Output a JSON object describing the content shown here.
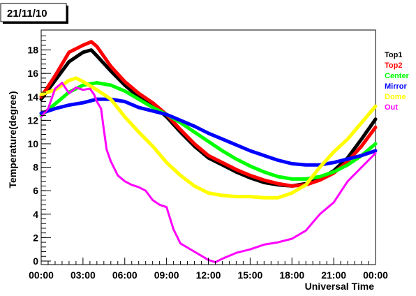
{
  "chart_data": {
    "type": "line",
    "title": "21/11/10",
    "xlabel": "Universal Time",
    "ylabel": "Temperature(degree)",
    "xlim": [
      0,
      24
    ],
    "ylim": [
      -0.3,
      19.7
    ],
    "x_ticks": [
      {
        "value": 0,
        "label": "00:00"
      },
      {
        "value": 3,
        "label": "03:00"
      },
      {
        "value": 6,
        "label": "06:00"
      },
      {
        "value": 9,
        "label": "09:00"
      },
      {
        "value": 12,
        "label": "12:00"
      },
      {
        "value": 15,
        "label": "15:00"
      },
      {
        "value": 18,
        "label": "18:00"
      },
      {
        "value": 21,
        "label": "21:00"
      },
      {
        "value": 24,
        "label": "00:00"
      }
    ],
    "y_ticks": [
      0,
      2,
      4,
      6,
      8,
      10,
      12,
      14,
      16,
      18
    ],
    "grid": false,
    "legend_position": "right",
    "series": [
      {
        "name": "Top1",
        "color": "#000000",
        "x": [
          0,
          1,
          2,
          3,
          3.6,
          4,
          5,
          6,
          7,
          8,
          9,
          10,
          11,
          12,
          13,
          14,
          15,
          16,
          17,
          18,
          19,
          20,
          21,
          22,
          23,
          24
        ],
        "y": [
          13.8,
          15.4,
          17.0,
          17.8,
          18.0,
          17.5,
          16.2,
          15.0,
          14.0,
          13.3,
          12.3,
          11.0,
          9.8,
          8.8,
          8.2,
          7.6,
          7.1,
          6.7,
          6.5,
          6.4,
          6.6,
          7.0,
          7.7,
          8.8,
          10.4,
          12.1
        ]
      },
      {
        "name": "Top2",
        "color": "#ff0000",
        "x": [
          0,
          1,
          2,
          3,
          3.6,
          4,
          5,
          6,
          7,
          8,
          9,
          10,
          11,
          12,
          13,
          14,
          15,
          16,
          17,
          18,
          19,
          20,
          21,
          22,
          23,
          24
        ],
        "y": [
          14.0,
          15.8,
          17.8,
          18.4,
          18.7,
          18.3,
          16.6,
          15.3,
          14.3,
          13.5,
          12.5,
          11.2,
          10.0,
          9.0,
          8.4,
          7.8,
          7.3,
          6.9,
          6.6,
          6.4,
          6.5,
          6.9,
          7.5,
          8.5,
          9.8,
          11.4
        ]
      },
      {
        "name": "Center",
        "color": "#00ff00",
        "x": [
          0,
          1,
          2,
          3,
          4,
          5,
          6,
          7,
          8,
          9,
          10,
          11,
          12,
          13,
          14,
          15,
          16,
          17,
          18,
          19,
          20,
          21,
          22,
          23,
          24
        ],
        "y": [
          12.4,
          13.4,
          14.4,
          15.0,
          15.2,
          15.0,
          14.5,
          13.8,
          13.1,
          12.5,
          11.8,
          11.0,
          10.2,
          9.4,
          8.7,
          8.1,
          7.6,
          7.2,
          7.0,
          7.0,
          7.2,
          7.6,
          8.2,
          9.0,
          10.0
        ]
      },
      {
        "name": "Mirror",
        "color": "#0000ff",
        "x": [
          0,
          1,
          2,
          3,
          4,
          5,
          6,
          7,
          8,
          9,
          10,
          11,
          12,
          13,
          14,
          15,
          16,
          17,
          18,
          19,
          20,
          21,
          22,
          23,
          24
        ],
        "y": [
          12.6,
          13.0,
          13.3,
          13.5,
          13.8,
          13.8,
          13.6,
          13.1,
          12.8,
          12.5,
          12.0,
          11.5,
          10.9,
          10.4,
          9.9,
          9.4,
          9.0,
          8.6,
          8.3,
          8.2,
          8.2,
          8.4,
          8.7,
          9.0,
          9.4
        ]
      },
      {
        "name": "Dome",
        "color": "#ffff00",
        "x": [
          0,
          1,
          2,
          2.5,
          3,
          4,
          5,
          6,
          7,
          8,
          9,
          10,
          11,
          12,
          13,
          14,
          15,
          16,
          17,
          18,
          19,
          20,
          21,
          22,
          23,
          24
        ],
        "y": [
          14.2,
          14.6,
          15.4,
          15.6,
          15.3,
          14.6,
          13.8,
          12.3,
          11.0,
          9.8,
          8.4,
          7.3,
          6.4,
          5.8,
          5.6,
          5.5,
          5.5,
          5.4,
          5.4,
          5.8,
          6.5,
          8.0,
          9.3,
          10.4,
          11.8,
          13.2
        ]
      },
      {
        "name": "Out",
        "color": "#ff00ff",
        "x": [
          0,
          0.5,
          1,
          1.5,
          2,
          2.5,
          3,
          3.5,
          3.8,
          4,
          4.3,
          4.5,
          4.7,
          5,
          5.5,
          6,
          6.5,
          7,
          7.5,
          8,
          8.5,
          9,
          9.5,
          10,
          11,
          12,
          12.5,
          13,
          14,
          15,
          16,
          17,
          18,
          19,
          20,
          21,
          22,
          23,
          24
        ],
        "y": [
          12.3,
          13.0,
          14.7,
          15.2,
          14.3,
          14.8,
          14.6,
          14.7,
          14.2,
          13.6,
          13.0,
          11.2,
          9.5,
          8.5,
          7.3,
          6.8,
          6.5,
          6.3,
          6.0,
          5.2,
          4.8,
          4.6,
          2.7,
          1.5,
          0.8,
          0.1,
          -0.1,
          0.2,
          0.7,
          1.0,
          1.4,
          1.6,
          1.9,
          2.6,
          4.0,
          5.0,
          6.8,
          8.0,
          9.2
        ]
      }
    ]
  }
}
